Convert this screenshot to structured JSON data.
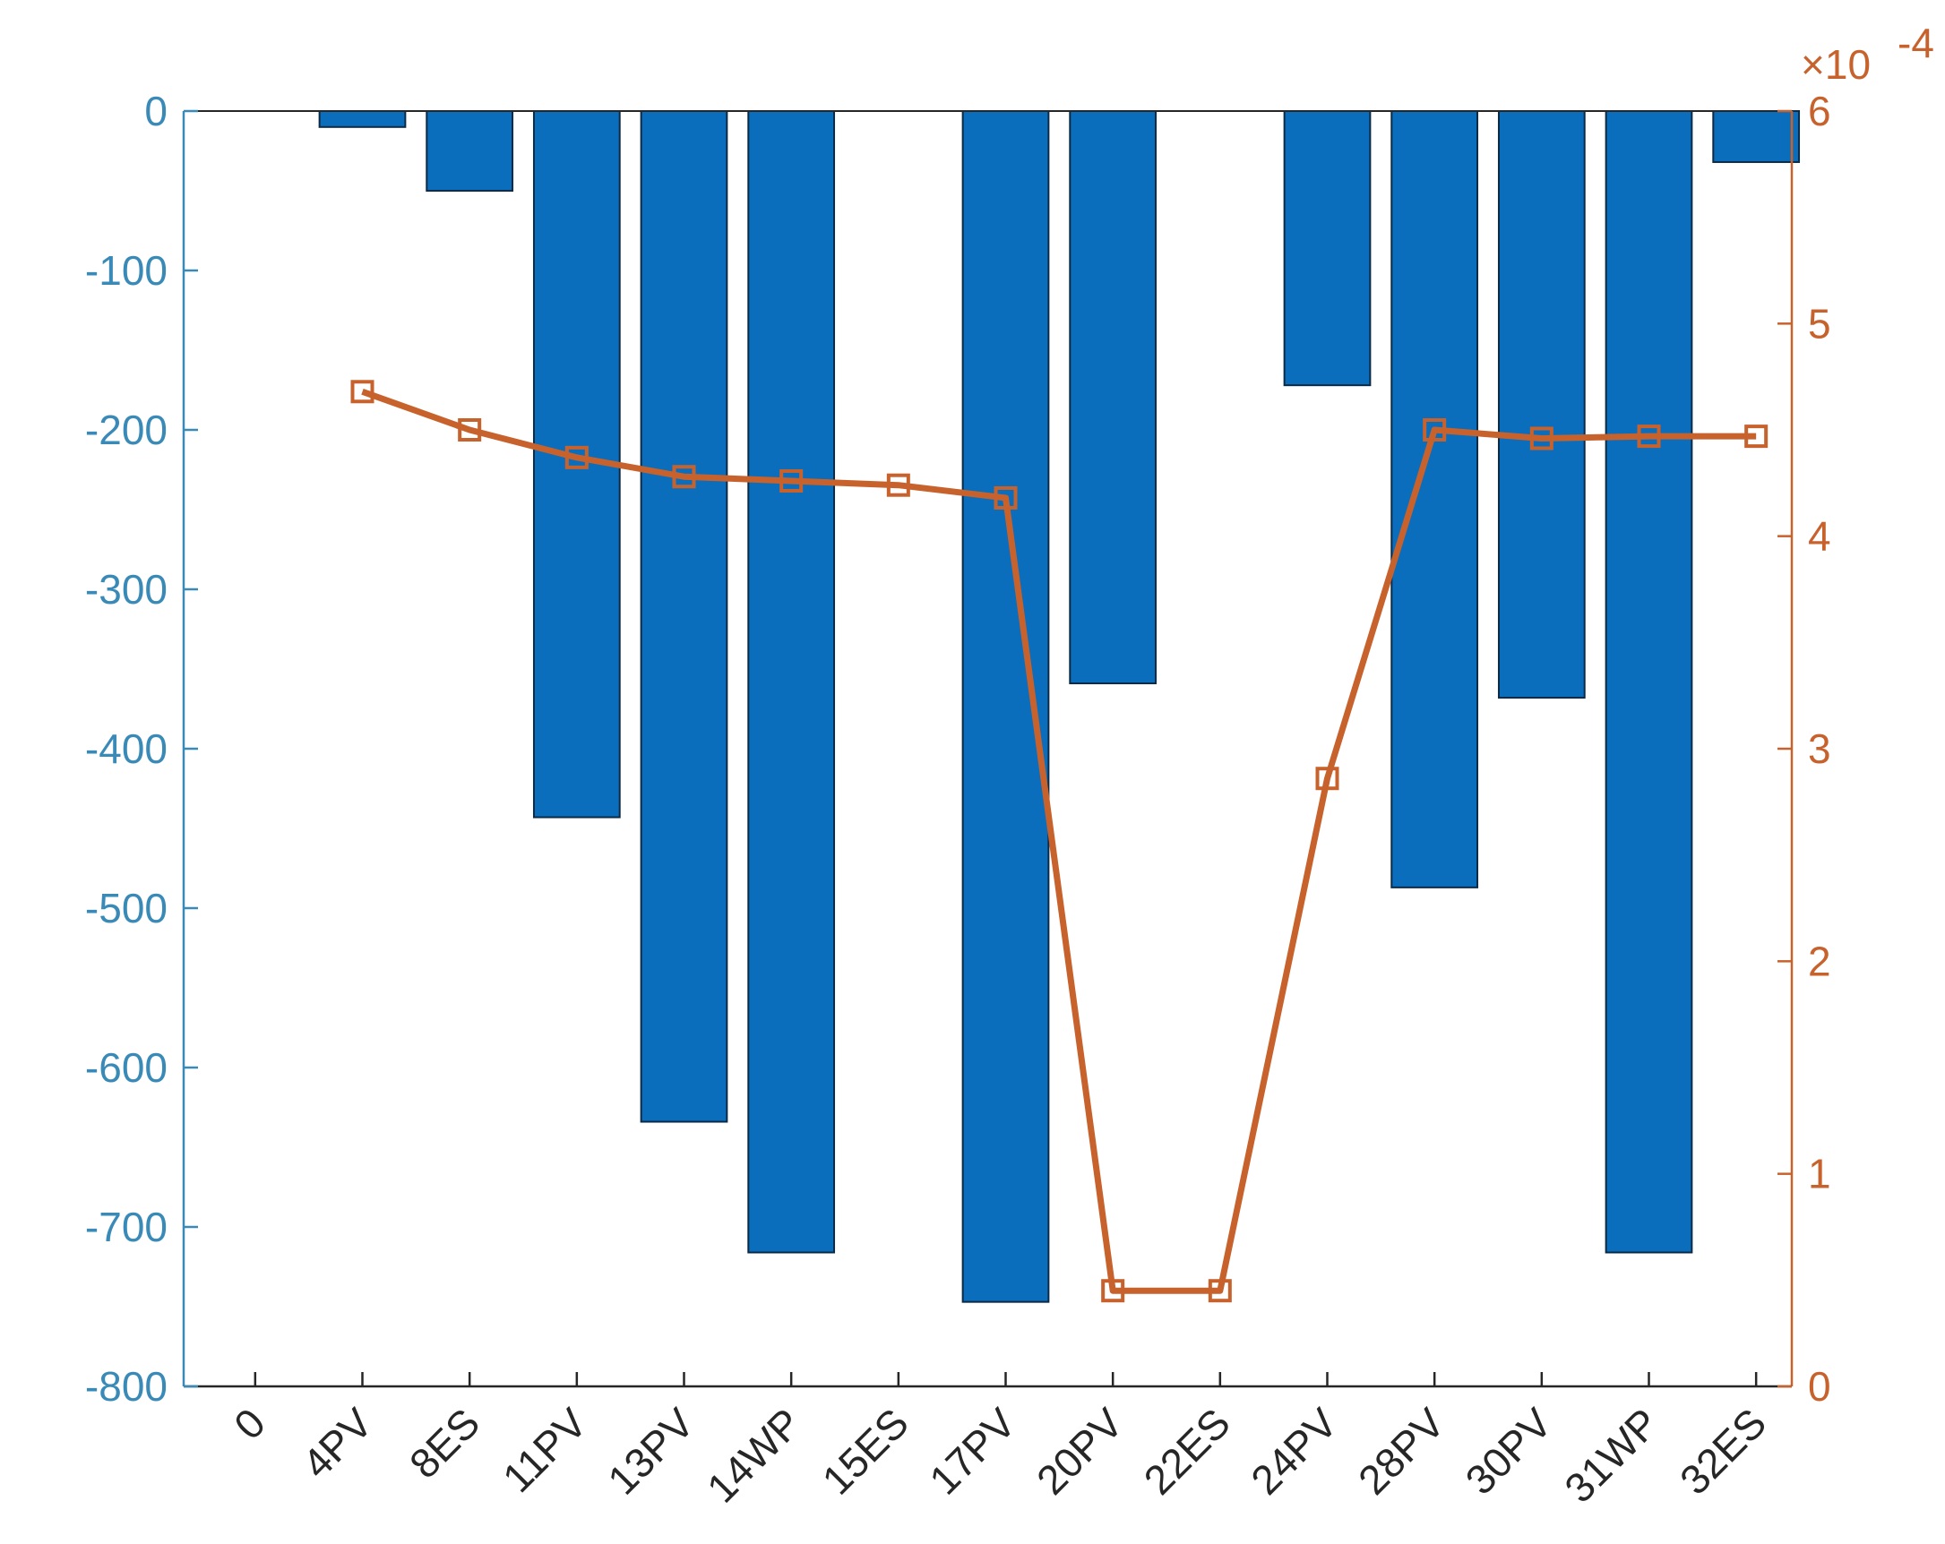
{
  "chart_data": {
    "type": "bar",
    "categories": [
      "0",
      "4PV",
      "8ES",
      "11PV",
      "13PV",
      "14WP",
      "15ES",
      "17PV",
      "20PV",
      "22ES",
      "24PV",
      "28PV",
      "30PV",
      "31WP",
      "32ES"
    ],
    "series": [
      {
        "type": "bar",
        "axis": "left",
        "values": [
          0,
          -10,
          -50,
          -443,
          -634,
          -716,
          0,
          -747,
          -359,
          0,
          -172,
          -487,
          -368,
          -716,
          -32
        ]
      },
      {
        "type": "line",
        "axis": "right",
        "marker": "square",
        "values": [
          null,
          0.000468,
          0.00045,
          0.000437,
          0.000428,
          0.000426,
          0.000424,
          0.000418,
          4.5e-05,
          4.5e-05,
          0.000286,
          0.00045,
          0.000446,
          0.000447,
          0.000447
        ]
      }
    ],
    "y_left": {
      "lim": [
        -800,
        0
      ],
      "ticks": [
        0,
        -100,
        -200,
        -300,
        -400,
        -500,
        -600,
        -700,
        -800
      ],
      "tick_labels": [
        "0",
        "-100",
        "-200",
        "-300",
        "-400",
        "-500",
        "-600",
        "-700",
        "-800"
      ],
      "color": "#3a8ab8"
    },
    "y_right": {
      "lim": [
        0,
        6
      ],
      "ticks": [
        0,
        1,
        2,
        3,
        4,
        5,
        6
      ],
      "tick_labels": [
        "0",
        "1",
        "2",
        "3",
        "4",
        "5",
        "6"
      ],
      "exponent_label": "×10",
      "exponent_power": "-4",
      "color": "#c8622d"
    },
    "colors": {
      "bar_fill": "#0a6ebd",
      "bar_edge": "#0a2a45",
      "line": "#c8622d"
    },
    "grid": false,
    "legend": "none"
  }
}
